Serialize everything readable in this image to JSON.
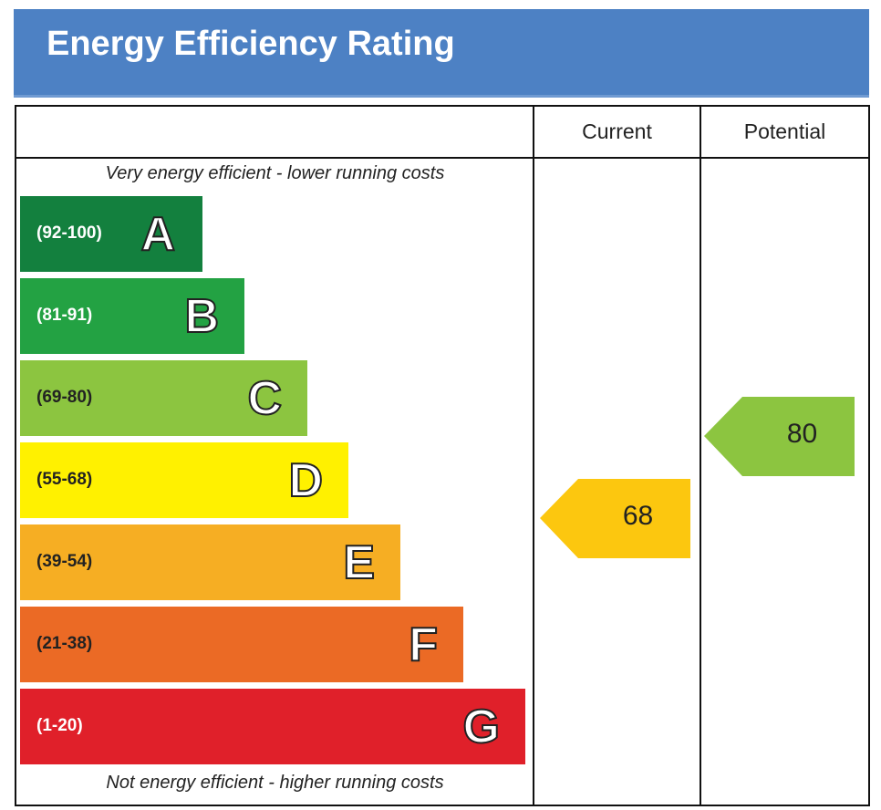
{
  "chart_data": {
    "type": "bar",
    "title": "Energy Efficiency Rating",
    "columns": [
      "Current",
      "Potential"
    ],
    "top_note": "Very energy efficient - lower running costs",
    "bottom_note": "Not energy efficient - higher running costs",
    "bands": [
      {
        "letter": "A",
        "range": "(92-100)",
        "color": "#13803e",
        "text_color": "#ffffff"
      },
      {
        "letter": "B",
        "range": "(81-91)",
        "color": "#23a243",
        "text_color": "#ffffff"
      },
      {
        "letter": "C",
        "range": "(69-80)",
        "color": "#8cc540",
        "text_color": "#222222"
      },
      {
        "letter": "D",
        "range": "(55-68)",
        "color": "#fff100",
        "text_color": "#222222"
      },
      {
        "letter": "E",
        "range": "(39-54)",
        "color": "#f6ae23",
        "text_color": "#222222"
      },
      {
        "letter": "F",
        "range": "(21-38)",
        "color": "#eb6a25",
        "text_color": "#222222"
      },
      {
        "letter": "G",
        "range": "(1-20)",
        "color": "#e0202a",
        "text_color": "#ffffff"
      }
    ],
    "current": {
      "value": "68",
      "band": "D",
      "color": "#fcc70f"
    },
    "potential": {
      "value": "80",
      "band": "C",
      "color": "#8cc540"
    }
  }
}
